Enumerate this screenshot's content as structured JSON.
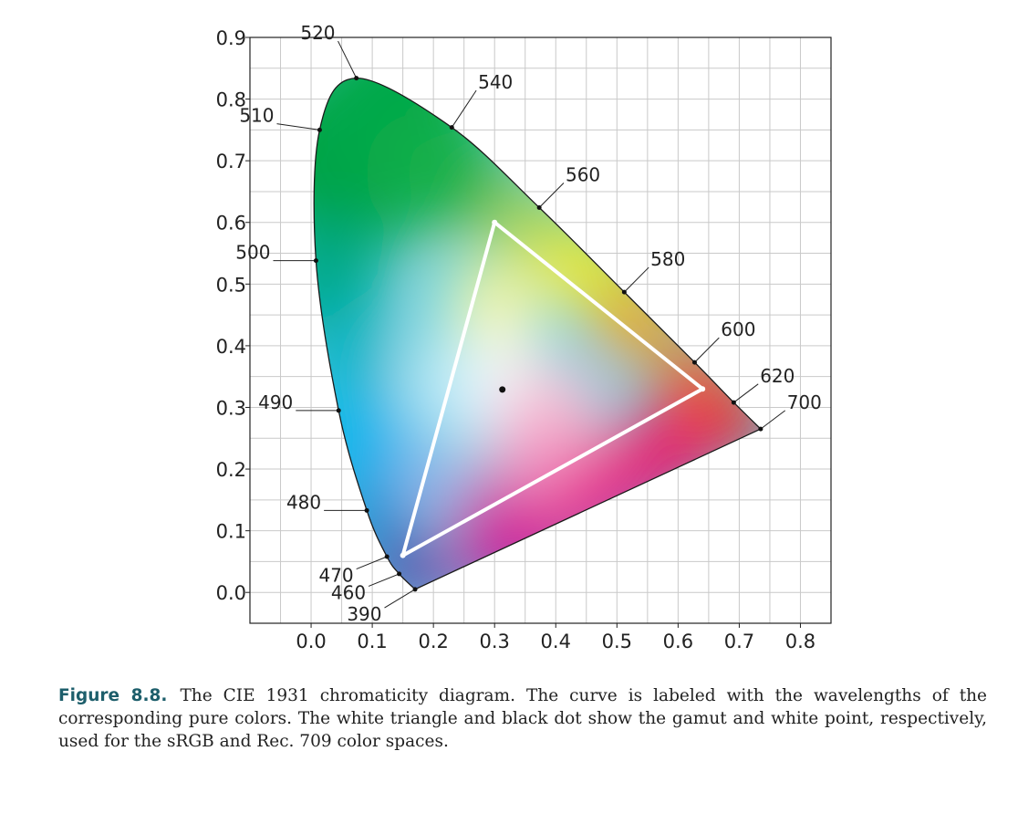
{
  "chart_data": {
    "type": "scatter",
    "title": "",
    "xlabel": "",
    "ylabel": "",
    "xlim": [
      -0.1,
      0.85
    ],
    "ylim": [
      -0.05,
      0.9
    ],
    "x_ticks": [
      "0.0",
      "0.1",
      "0.2",
      "0.3",
      "0.4",
      "0.5",
      "0.6",
      "0.7",
      "0.8"
    ],
    "y_ticks": [
      "0.0",
      "0.1",
      "0.2",
      "0.3",
      "0.4",
      "0.5",
      "0.6",
      "0.7",
      "0.8",
      "0.9"
    ],
    "grid": true,
    "spectral_locus": [
      {
        "label": "390",
        "x": 0.17,
        "y": 0.005
      },
      {
        "label": "460",
        "x": 0.144,
        "y": 0.03
      },
      {
        "label": "470",
        "x": 0.124,
        "y": 0.058
      },
      {
        "label": "480",
        "x": 0.091,
        "y": 0.133
      },
      {
        "label": "490",
        "x": 0.045,
        "y": 0.295
      },
      {
        "label": "500",
        "x": 0.008,
        "y": 0.538
      },
      {
        "label": "510",
        "x": 0.014,
        "y": 0.75
      },
      {
        "label": "520",
        "x": 0.074,
        "y": 0.834
      },
      {
        "label": "540",
        "x": 0.23,
        "y": 0.754
      },
      {
        "label": "560",
        "x": 0.373,
        "y": 0.624
      },
      {
        "label": "580",
        "x": 0.512,
        "y": 0.487
      },
      {
        "label": "600",
        "x": 0.627,
        "y": 0.373
      },
      {
        "label": "620",
        "x": 0.691,
        "y": 0.308
      },
      {
        "label": "700",
        "x": 0.735,
        "y": 0.265
      }
    ],
    "gamut_triangle": [
      {
        "x": 0.64,
        "y": 0.33
      },
      {
        "x": 0.3,
        "y": 0.6
      },
      {
        "x": 0.15,
        "y": 0.06
      }
    ],
    "white_point": {
      "x": 0.3127,
      "y": 0.329
    }
  },
  "caption": {
    "label": "Figure 8.8.",
    "text": "The CIE 1931 chromaticity diagram. The curve is labeled with the wavelengths of the corresponding pure colors. The white triangle and black dot show the gamut and white point, respectively, used for the sRGB and Rec. 709 color spaces."
  }
}
